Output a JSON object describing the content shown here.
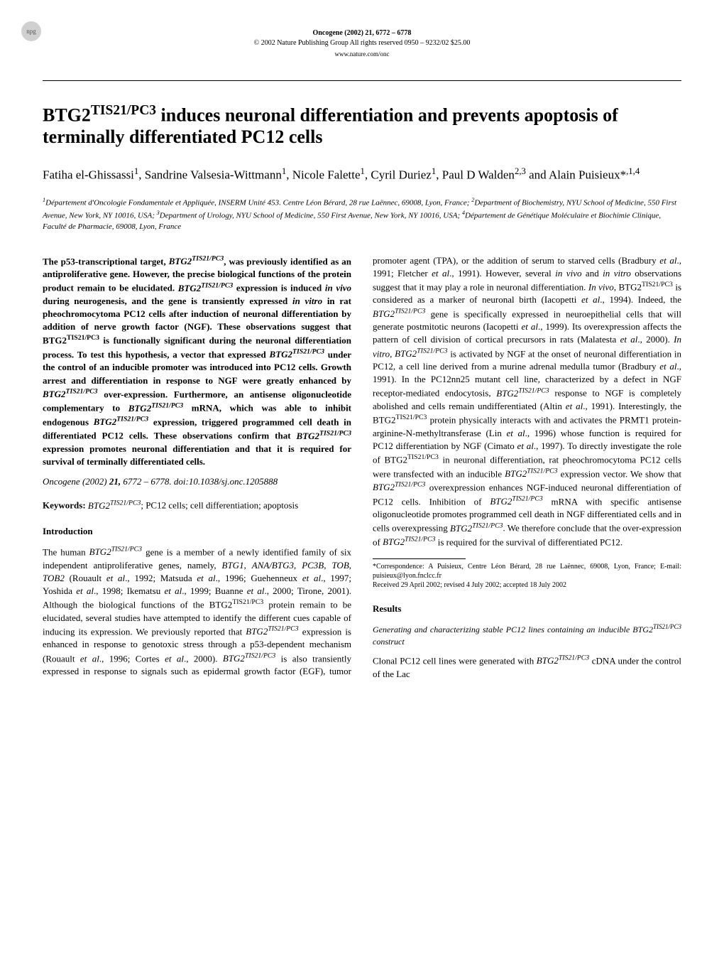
{
  "badge": "npg",
  "header": {
    "journal_line": "Oncogene (2002) 21, 6772 – 6778",
    "copyright_line": "© 2002 Nature Publishing Group   All rights reserved 0950 – 9232/02 $25.00",
    "url": "www.nature.com/onc"
  },
  "title_html": "BTG2<sup>TIS21/PC3</sup> induces neuronal differentiation and prevents apoptosis of terminally differentiated PC12 cells",
  "authors_html": "Fatiha el-Ghissassi<sup>1</sup>, Sandrine Valsesia-Wittmann<sup>1</sup>, Nicole Falette<sup>1</sup>, Cyril Duriez<sup>1</sup>, Paul D Walden<sup>2,3</sup> and Alain Puisieux*<sup>,1,4</sup>",
  "affiliations_html": "<sup>1</sup>Département d'Oncologie Fondamentale et Appliquée, INSERM Unité 453. Centre Léon Bérard, 28 rue Laënnec, 69008, Lyon, France; <sup>2</sup>Department of Biochemistry, NYU School of Medicine, 550 First Avenue, New York, NY 10016, USA; <sup>3</sup>Department of Urology, NYU School of Medicine, 550 First Avenue, New York, NY 10016, USA; <sup>4</sup>Département de Génétique Moléculaire et Biochimie Clinique, Faculté de Pharmacie, 69008, Lyon, France",
  "abstract_html": "The p53-transcriptional target, <span class='gene'>BTG2<sup>TIS21/PC3</sup></span>, was previously identified as an antiproliferative gene. However, the precise biological functions of the protein product remain to be elucidated. <span class='gene'>BTG2<sup>TIS21/PC3</sup></span> expression is induced <i>in vivo</i> during neurogenesis, and the gene is transiently expressed <i>in vitro</i> in rat pheochromocytoma PC12 cells after induction of neuronal differentiation by addition of nerve growth factor (NGF). These observations suggest that BTG2<sup>TIS21/PC3</sup> is functionally significant during the neuronal differentiation process. To test this hypothesis, a vector that expressed <span class='gene'>BTG2<sup>TIS21/PC3</sup></span> under the control of an inducible promoter was introduced into PC12 cells. Growth arrest and differentiation in response to NGF were greatly enhanced by <span class='gene'>BTG2<sup>TIS21/PC3</sup></span> over-expression. Furthermore, an antisense oligonucleotide complementary to <span class='gene'>BTG2<sup>TIS21/PC3</sup></span> mRNA, which was able to inhibit endogenous <span class='gene'>BTG2<sup>TIS21/PC3</sup></span> expression, triggered programmed cell death in differentiated PC12 cells. These observations confirm that <span class='gene'>BTG2<sup>TIS21/PC3</sup></span> expression promotes neuronal differentiation and that it is required for survival of terminally differentiated cells.",
  "citation_html": "<i>Oncogene</i> (2002) <b>21,</b> 6772 – 6778. doi:10.1038/sj.onc.1205888",
  "keywords_html": "<span class='kw-label'>Keywords:</span> <span class='gene'>BTG2<sup>TIS21/PC3</sup></span>; PC12 cells; cell differentiation; apoptosis",
  "sections": {
    "introduction": {
      "heading": "Introduction",
      "p1_html": "The human <span class='gene'>BTG2<sup>TIS21/PC3</sup></span> gene is a member of a newly identified family of six independent antiproliferative genes, namely, <span class='gene'>BTG1</span>, <span class='gene'>ANA/BTG3</span>, <span class='gene'>PC3B</span>, <span class='gene'>TOB</span>, <span class='gene'>TOB2</span> (Rouault <i>et al</i>., 1992; Matsuda <i>et al</i>., 1996; Guehenneux <i>et al</i>., 1997; Yoshida <i>et al</i>., 1998; Ikematsu <i>et al</i>., 1999; Buanne <i>et al</i>., 2000; Tirone, 2001). Although the biological functions of the BTG2<sup>TIS21/PC3</sup> protein remain to be elucidated, several studies have attempted to identify the different cues capable of inducing its expression. We previously reported that <span class='gene'>BTG2<sup>TIS21/PC3</sup></span> expression is enhanced in response to genotoxic stress through a p53-dependent mechanism (Rouault <i>et al</i>., 1996; Cortes <i>et al</i>., 2000). <span class='gene'>BTG2<sup>TIS21/PC3</sup></span> is also transiently expressed in response to signals such as epidermal growth factor (EGF), tumor promoter agent (TPA), or the addition of serum to starved cells (Bradbury <i>et al</i>., 1991; Fletcher <i>et al</i>., 1991). However, several <i>in vivo</i> and <i>in vitro</i> observations suggest that it may play a role in neuronal differentiation. <i>In vivo</i>, BTG2<sup>TIS21/PC3</sup> is considered as a marker of neuronal birth (Iacopetti <i>et al</i>., 1994). Indeed, the <span class='gene'>BTG2<sup>TIS21/PC3</sup></span> gene is specifically expressed in neuroepithelial cells that will generate postmitotic neurons (Iacopetti <i>et al</i>., 1999). Its overexpression affects the pattern of cell division of cortical precursors in rats (Malatesta <i>et al</i>., 2000). <i>In vitro</i>, <span class='gene'>BTG2<sup>TIS21/PC3</sup></span> is activated by NGF at the onset of neuronal differentiation in PC12, a cell line derived from a murine adrenal medulla tumor (Bradbury <i>et al</i>., 1991). In the PC12nn25 mutant cell line, characterized by a defect in NGF receptor-mediated endocytosis, <span class='gene'>BTG2<sup>TIS21/PC3</sup></span> response to NGF is completely abolished and cells remain undifferentiated (Altin <i>et al</i>., 1991). Interestingly, the BTG2<sup>TIS21/PC3</sup> protein physically interacts with and activates the PRMT1 protein-arginine-N-methyltransferase (Lin <i>et al</i>., 1996) whose function is required for PC12 differentiation by NGF (Cimato <i>et al</i>., 1997). To directly investigate the role of BTG2<sup>TIS21/PC3</sup> in neuronal differentiation, rat pheochromocytoma PC12 cells were transfected with an inducible <span class='gene'>BTG2<sup>TIS21/PC3</sup></span> expression vector. We show that <span class='gene'>BTG2<sup>TIS21/PC3</sup></span> overexpression enhances NGF-induced neuronal differentiation of PC12 cells. Inhibition of <span class='gene'>BTG2<sup>TIS21/PC3</sup></span> mRNA with specific antisense oligonucleotide promotes programmed cell death in NGF differentiated cells and in cells overexpressing <span class='gene'>BTG2<sup>TIS21/PC3</sup></span>. We therefore conclude that the over-expression of <span class='gene'>BTG2<sup>TIS21/PC3</sup></span> is required for the survival of differentiated PC12."
    },
    "results": {
      "heading": "Results",
      "sub1_heading_html": "Generating and characterizing stable PC12 lines containing an inducible BTG2<sup>TIS21/PC3</sup> construct",
      "sub1_p1_html": "Clonal PC12 cell lines were generated with <span class='gene'>BTG2<sup>TIS21/PC3</sup></span> cDNA under the control of the Lac"
    }
  },
  "footnote": {
    "line1": "*Correspondence: A Puisieux, Centre Léon Bérard, 28 rue Laënnec, 69008, Lyon, France; E-mail: puisieux@lyon.fnclcc.fr",
    "line2": "Received 29 April 2002; revised 4 July 2002; accepted 18 July 2002"
  }
}
